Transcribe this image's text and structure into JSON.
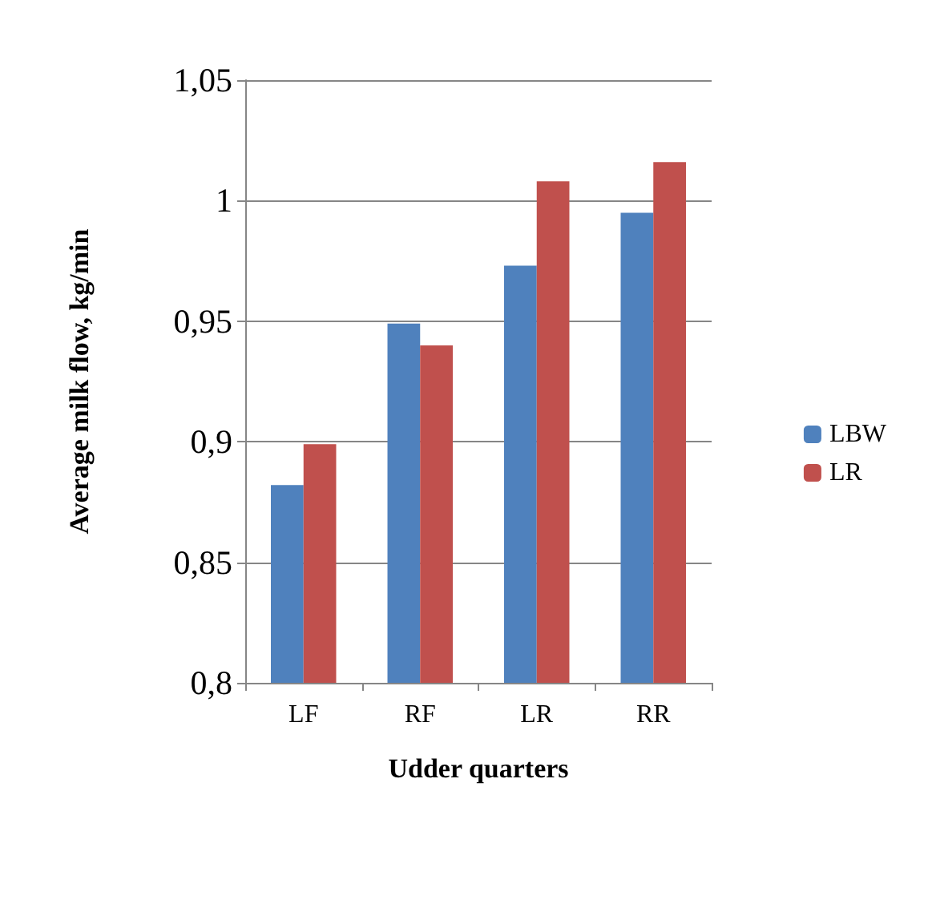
{
  "chart_data": {
    "type": "bar",
    "xlabel": "Udder quarters",
    "ylabel": "Average milk flow, kg/min",
    "categories": [
      "LF",
      "RF",
      "LR",
      "RR"
    ],
    "series": [
      {
        "name": "LBW",
        "color": "#4f81bd",
        "values": [
          0.882,
          0.949,
          0.973,
          0.995
        ]
      },
      {
        "name": "LR",
        "color": "#c0504d",
        "values": [
          0.899,
          0.94,
          1.008,
          1.016
        ]
      }
    ],
    "ylim": [
      0.8,
      1.05
    ],
    "yticks": [
      {
        "value": 0.8,
        "label": "0,8"
      },
      {
        "value": 0.85,
        "label": "0,85"
      },
      {
        "value": 0.9,
        "label": "0,9"
      },
      {
        "value": 0.95,
        "label": "0,95"
      },
      {
        "value": 1,
        "label": "1"
      },
      {
        "value": 1.05,
        "label": "1,05"
      }
    ],
    "grid": "y",
    "legend": "right"
  }
}
